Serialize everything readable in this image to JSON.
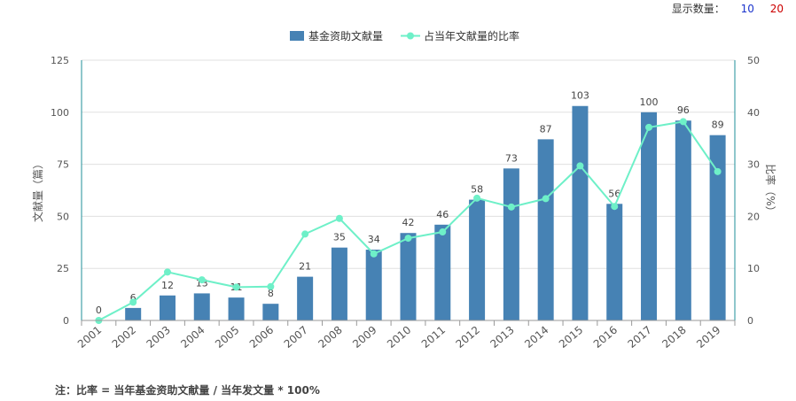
{
  "controls": {
    "display_count_label": "显示数量：",
    "options": [
      "10",
      "20"
    ]
  },
  "note": "注：比率 = 当年基金资助文献量 / 当年发文量 * 100%",
  "colors": {
    "bar": "#4682b4",
    "line": "#6ef0c8",
    "axis": "#1f8f9a",
    "grid": "#e0e0e0",
    "text": "#555555"
  },
  "chart_data": {
    "type": "bar+line",
    "categories": [
      "2001",
      "2002",
      "2003",
      "2004",
      "2005",
      "2006",
      "2007",
      "2008",
      "2009",
      "2010",
      "2011",
      "2012",
      "2013",
      "2014",
      "2015",
      "2016",
      "2017",
      "2018",
      "2019"
    ],
    "legend": [
      "基金资助文献量",
      "占当年文献量的比率"
    ],
    "legend_position": "top-center",
    "ylabel_left": "文献量（篇）",
    "ylabel_right": "比率（%）",
    "ylim_left": [
      0,
      125
    ],
    "yticks_left": [
      0,
      25,
      50,
      75,
      100,
      125
    ],
    "ylim_right": [
      0,
      50
    ],
    "yticks_right": [
      0,
      10,
      20,
      30,
      40,
      50
    ],
    "grid": true,
    "series": [
      {
        "name": "基金资助文献量",
        "type": "bar",
        "values": [
          0,
          6,
          12,
          13,
          11,
          8,
          21,
          35,
          34,
          42,
          46,
          58,
          73,
          87,
          103,
          56,
          100,
          96,
          89
        ]
      },
      {
        "name": "占当年文献量的比率",
        "type": "line",
        "values": [
          0,
          3.5,
          9.3,
          7.8,
          6.4,
          6.5,
          16.6,
          19.6,
          12.8,
          15.8,
          17.0,
          23.5,
          21.8,
          23.4,
          29.7,
          21.9,
          37.1,
          38.2,
          28.6
        ]
      }
    ]
  }
}
